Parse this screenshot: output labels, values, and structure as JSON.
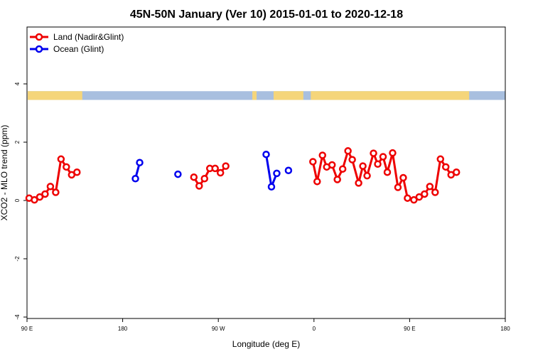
{
  "chart_data": {
    "type": "line",
    "title": "45N-50N January (Ver 10)   2015-01-01 to 2020-12-18",
    "xlabel": "Longitude (deg E)",
    "ylabel": "XCO2 - MLO trend (ppm)",
    "xlim": [
      90,
      540
    ],
    "ylim": [
      -4,
      6
    ],
    "x_ticks": [
      {
        "value": 90,
        "label": "90 E"
      },
      {
        "value": 180,
        "label": "180"
      },
      {
        "value": 270,
        "label": "90 W"
      },
      {
        "value": 360,
        "label": "0"
      },
      {
        "value": 450,
        "label": "90 E"
      },
      {
        "value": 540,
        "label": "180"
      }
    ],
    "y_ticks": [
      {
        "value": -4,
        "label": "-4"
      },
      {
        "value": -2,
        "label": "-2"
      },
      {
        "value": 0,
        "label": "0"
      },
      {
        "value": 2,
        "label": "2"
      },
      {
        "value": 4,
        "label": "4"
      }
    ],
    "legend_position": "top-left",
    "map_strip": {
      "y_range": [
        3.45,
        3.75
      ],
      "land_color": "#f5d57a",
      "ocean_color": "#a8bfdf",
      "land_lon_ranges": [
        [
          90,
          142
        ],
        [
          302,
          306
        ],
        [
          322,
          350
        ],
        [
          357,
          506
        ]
      ]
    },
    "series": [
      {
        "name": "Land (Nadir&Glint)",
        "color": "#ee0000",
        "segments": [
          [
            [
              92,
              0.08
            ],
            [
              97,
              0.02
            ],
            [
              102,
              0.12
            ],
            [
              107,
              0.22
            ],
            [
              112,
              0.48
            ],
            [
              117,
              0.28
            ],
            [
              122,
              1.42
            ],
            [
              127,
              1.15
            ],
            [
              132,
              0.88
            ],
            [
              137,
              0.97
            ]
          ],
          [
            [
              247,
              0.8
            ],
            [
              252,
              0.5
            ],
            [
              257,
              0.75
            ],
            [
              262,
              1.1
            ],
            [
              267,
              1.1
            ],
            [
              272,
              0.95
            ],
            [
              277,
              1.18
            ]
          ],
          [
            [
              359,
              1.33
            ],
            [
              363,
              0.65
            ],
            [
              368,
              1.55
            ],
            [
              372,
              1.15
            ],
            [
              377,
              1.22
            ],
            [
              382,
              0.72
            ],
            [
              387,
              1.08
            ],
            [
              392,
              1.7
            ],
            [
              396,
              1.4
            ],
            [
              402,
              0.6
            ],
            [
              406,
              1.18
            ],
            [
              410,
              0.85
            ],
            [
              416,
              1.62
            ],
            [
              420,
              1.25
            ],
            [
              425,
              1.5
            ],
            [
              429,
              0.97
            ],
            [
              434,
              1.63
            ],
            [
              439,
              0.45
            ],
            [
              444,
              0.78
            ],
            [
              448,
              0.08
            ],
            [
              454,
              0.02
            ],
            [
              459,
              0.12
            ],
            [
              464,
              0.22
            ],
            [
              469,
              0.48
            ],
            [
              474,
              0.28
            ],
            [
              479,
              1.42
            ],
            [
              484,
              1.15
            ],
            [
              489,
              0.88
            ],
            [
              494,
              0.97
            ]
          ]
        ]
      },
      {
        "name": "Ocean (Glint)",
        "color": "#0000ee",
        "segments": [
          [
            [
              192,
              0.75
            ],
            [
              196,
              1.3
            ]
          ],
          [
            [
              232,
              0.9
            ]
          ],
          [
            [
              315,
              1.58
            ],
            [
              320,
              0.47
            ],
            [
              325,
              0.93
            ]
          ],
          [
            [
              336,
              1.03
            ]
          ]
        ]
      }
    ]
  }
}
